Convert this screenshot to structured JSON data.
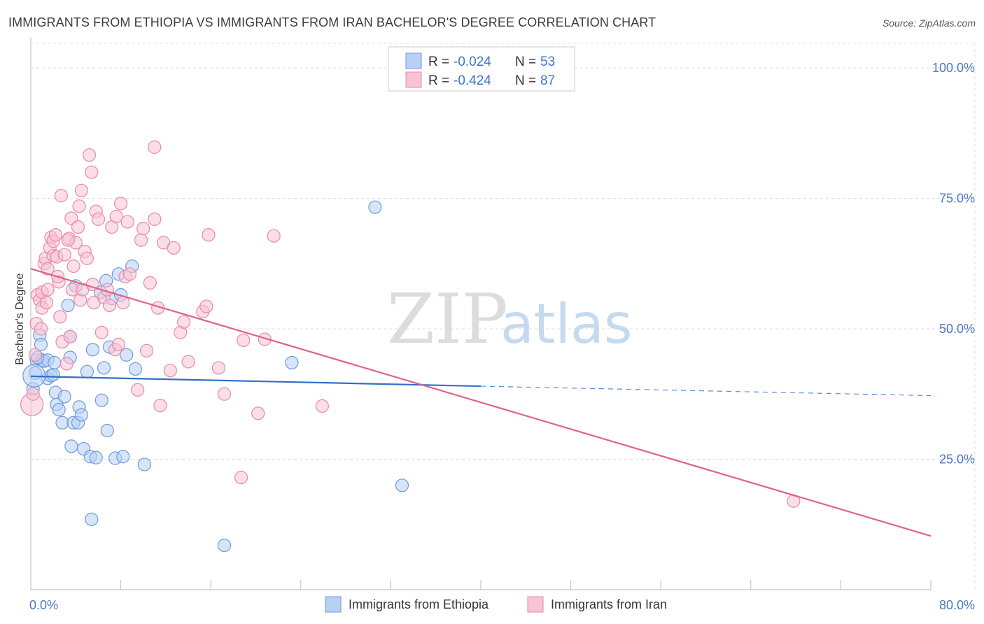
{
  "title": "IMMIGRANTS FROM ETHIOPIA VS IMMIGRANTS FROM IRAN BACHELOR'S DEGREE CORRELATION CHART",
  "source": "Source: ZipAtlas.com",
  "watermark": {
    "part1": "ZIP",
    "part2": "atlas"
  },
  "colors": {
    "ethiopia_fill": "#b8d0f4",
    "ethiopia_stroke": "#6b9be0",
    "ethiopia_line": "#2f6fcb",
    "iran_fill": "#f8c3d4",
    "iran_stroke": "#e88aa8",
    "iran_line": "#e0608e",
    "grid": "#dddddd",
    "axis_text": "#4a78c2"
  },
  "legend": {
    "rows": [
      {
        "r_label": "R = ",
        "r_value": "-0.024",
        "n_label": "N = ",
        "n_value": "53"
      },
      {
        "r_label": "R = ",
        "r_value": "-0.424",
        "n_label": "N = ",
        "n_value": "87"
      }
    ]
  },
  "chart_data": {
    "type": "scatter",
    "title": "IMMIGRANTS FROM ETHIOPIA VS IMMIGRANTS FROM IRAN BACHELOR'S DEGREE CORRELATION CHART",
    "xlabel": "",
    "ylabel": "Bachelor's Degree",
    "xlim": [
      0,
      80
    ],
    "ylim": [
      0,
      105
    ],
    "x_tick_labels": [
      "0.0%",
      "80.0%"
    ],
    "y_ticks": [
      25,
      50,
      75,
      100
    ],
    "y_tick_labels": [
      "25.0%",
      "50.0%",
      "75.0%",
      "100.0%"
    ],
    "series": [
      {
        "name": "Immigrants from Ethiopia",
        "r": -0.024,
        "n": 53,
        "trend": {
          "x0": 0,
          "y0": 40.9,
          "x1": 40,
          "y1": 39.0,
          "dash_to_x": 80,
          "dash_to_y": 37.2
        },
        "points": [
          [
            0.2,
            38.5
          ],
          [
            0.4,
            41.5
          ],
          [
            0.5,
            44.0
          ],
          [
            0.8,
            48.8
          ],
          [
            0.9,
            47.0
          ],
          [
            1.0,
            44.0
          ],
          [
            1.2,
            43.8
          ],
          [
            1.5,
            44.0
          ],
          [
            1.5,
            40.5
          ],
          [
            1.8,
            41.0
          ],
          [
            2.0,
            41.2
          ],
          [
            2.2,
            37.8
          ],
          [
            2.3,
            35.5
          ],
          [
            2.5,
            34.5
          ],
          [
            2.8,
            32.0
          ],
          [
            3.0,
            37.0
          ],
          [
            3.3,
            54.5
          ],
          [
            3.5,
            48.5
          ],
          [
            3.6,
            27.5
          ],
          [
            3.8,
            32.0
          ],
          [
            4.2,
            32.0
          ],
          [
            4.3,
            35.0
          ],
          [
            4.5,
            33.5
          ],
          [
            4.7,
            27.0
          ],
          [
            5.0,
            41.8
          ],
          [
            5.3,
            25.5
          ],
          [
            5.4,
            13.5
          ],
          [
            5.5,
            46.0
          ],
          [
            5.8,
            25.3
          ],
          [
            6.2,
            57.0
          ],
          [
            6.3,
            36.3
          ],
          [
            6.5,
            42.5
          ],
          [
            6.7,
            59.2
          ],
          [
            6.8,
            30.5
          ],
          [
            7.0,
            46.5
          ],
          [
            7.2,
            55.8
          ],
          [
            7.5,
            25.2
          ],
          [
            7.8,
            60.5
          ],
          [
            8.0,
            56.5
          ],
          [
            8.2,
            25.5
          ],
          [
            8.5,
            45.0
          ],
          [
            9.0,
            62.0
          ],
          [
            9.3,
            42.3
          ],
          [
            10.1,
            24.0
          ],
          [
            4.0,
            58.2
          ],
          [
            2.1,
            43.5
          ],
          [
            3.5,
            44.5
          ],
          [
            0.6,
            44.5
          ],
          [
            17.2,
            8.5
          ],
          [
            23.2,
            43.5
          ],
          [
            30.6,
            73.3
          ],
          [
            33.0,
            20.0
          ],
          [
            0.3,
            41.0
          ]
        ]
      },
      {
        "name": "Immigrants from Iran",
        "r": -0.424,
        "n": 87,
        "trend": {
          "x0": 0,
          "y0": 61.5,
          "x1": 80,
          "y1": 10.3
        },
        "points": [
          [
            0.1,
            35.5
          ],
          [
            0.2,
            37.5
          ],
          [
            0.4,
            45.0
          ],
          [
            0.5,
            51.0
          ],
          [
            0.6,
            56.5
          ],
          [
            0.8,
            55.5
          ],
          [
            1.0,
            57.0
          ],
          [
            1.0,
            54.0
          ],
          [
            1.2,
            62.5
          ],
          [
            1.3,
            63.5
          ],
          [
            1.5,
            61.5
          ],
          [
            1.5,
            57.5
          ],
          [
            1.7,
            65.5
          ],
          [
            1.8,
            67.5
          ],
          [
            2.0,
            66.8
          ],
          [
            2.0,
            64.0
          ],
          [
            2.2,
            68.0
          ],
          [
            2.3,
            63.8
          ],
          [
            2.5,
            59.0
          ],
          [
            2.6,
            52.3
          ],
          [
            2.7,
            75.5
          ],
          [
            2.8,
            47.5
          ],
          [
            3.0,
            64.2
          ],
          [
            3.2,
            43.3
          ],
          [
            3.4,
            67.3
          ],
          [
            3.5,
            48.5
          ],
          [
            3.6,
            71.2
          ],
          [
            3.7,
            57.5
          ],
          [
            3.8,
            62.0
          ],
          [
            4.0,
            66.5
          ],
          [
            4.2,
            69.5
          ],
          [
            4.3,
            73.5
          ],
          [
            4.4,
            55.5
          ],
          [
            4.5,
            76.5
          ],
          [
            4.6,
            57.5
          ],
          [
            4.8,
            64.8
          ],
          [
            5.0,
            63.5
          ],
          [
            5.2,
            83.3
          ],
          [
            5.4,
            80.0
          ],
          [
            5.5,
            58.5
          ],
          [
            5.6,
            55.0
          ],
          [
            5.8,
            72.5
          ],
          [
            6.0,
            71.0
          ],
          [
            6.3,
            49.3
          ],
          [
            6.5,
            56.0
          ],
          [
            6.8,
            57.5
          ],
          [
            7.0,
            54.5
          ],
          [
            7.2,
            69.5
          ],
          [
            7.5,
            46.0
          ],
          [
            7.6,
            71.5
          ],
          [
            7.8,
            47.0
          ],
          [
            8.0,
            74.0
          ],
          [
            8.2,
            55.0
          ],
          [
            8.4,
            60.0
          ],
          [
            8.6,
            70.5
          ],
          [
            8.8,
            60.5
          ],
          [
            9.5,
            38.3
          ],
          [
            9.8,
            67.0
          ],
          [
            10.0,
            69.2
          ],
          [
            10.3,
            45.8
          ],
          [
            10.6,
            58.8
          ],
          [
            11.0,
            71.0
          ],
          [
            11.3,
            54.0
          ],
          [
            11.5,
            35.3
          ],
          [
            11.8,
            66.5
          ],
          [
            12.4,
            42.0
          ],
          [
            12.7,
            65.5
          ],
          [
            13.3,
            49.3
          ],
          [
            13.6,
            51.3
          ],
          [
            14.0,
            43.7
          ],
          [
            15.3,
            53.3
          ],
          [
            15.6,
            54.3
          ],
          [
            15.8,
            68.0
          ],
          [
            16.7,
            42.5
          ],
          [
            17.2,
            37.5
          ],
          [
            18.7,
            21.5
          ],
          [
            18.9,
            47.8
          ],
          [
            20.2,
            33.8
          ],
          [
            20.8,
            48.0
          ],
          [
            21.6,
            67.8
          ],
          [
            25.9,
            35.2
          ],
          [
            67.8,
            17.0
          ],
          [
            11.0,
            84.8
          ],
          [
            3.3,
            67.0
          ],
          [
            1.4,
            55.0
          ],
          [
            0.9,
            50.0
          ],
          [
            2.4,
            60.0
          ]
        ]
      }
    ]
  }
}
